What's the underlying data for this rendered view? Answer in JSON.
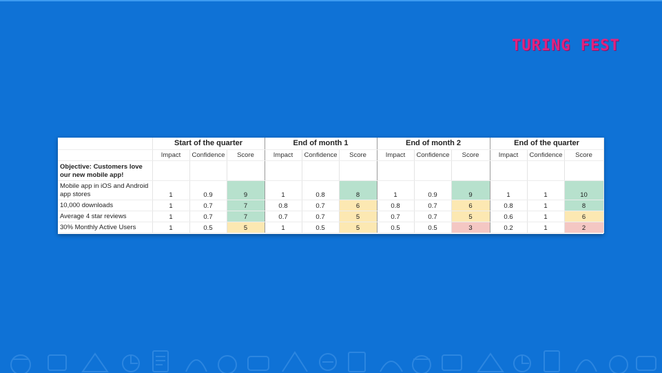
{
  "logo": "TURING FEST",
  "sheet": {
    "groups": [
      "Start of the quarter",
      "End of month 1",
      "End of month 2",
      "End of the quarter"
    ],
    "subheaders": [
      "Impact",
      "Confidence",
      "Score"
    ],
    "objective": "Objective: Customers love our new mobile app!",
    "rows": [
      {
        "label": "Mobile app in iOS and Android app stores",
        "cells": [
          {
            "impact": "1",
            "confidence": "0.9",
            "score": "9",
            "color": "green"
          },
          {
            "impact": "1",
            "confidence": "0.8",
            "score": "8",
            "color": "green"
          },
          {
            "impact": "1",
            "confidence": "0.9",
            "score": "9",
            "color": "green"
          },
          {
            "impact": "1",
            "confidence": "1",
            "score": "10",
            "color": "green"
          }
        ]
      },
      {
        "label": "10,000 downloads",
        "cells": [
          {
            "impact": "1",
            "confidence": "0.7",
            "score": "7",
            "color": "green"
          },
          {
            "impact": "0.8",
            "confidence": "0.7",
            "score": "6",
            "color": "yellow"
          },
          {
            "impact": "0.8",
            "confidence": "0.7",
            "score": "6",
            "color": "yellow"
          },
          {
            "impact": "0.8",
            "confidence": "1",
            "score": "8",
            "color": "green"
          }
        ]
      },
      {
        "label": "Average 4 star reviews",
        "cells": [
          {
            "impact": "1",
            "confidence": "0.7",
            "score": "7",
            "color": "green"
          },
          {
            "impact": "0.7",
            "confidence": "0.7",
            "score": "5",
            "color": "yellow"
          },
          {
            "impact": "0.7",
            "confidence": "0.7",
            "score": "5",
            "color": "yellow"
          },
          {
            "impact": "0.6",
            "confidence": "1",
            "score": "6",
            "color": "yellow"
          }
        ]
      },
      {
        "label": "30% Monthly Active Users",
        "cells": [
          {
            "impact": "1",
            "confidence": "0.5",
            "score": "5",
            "color": "yellow"
          },
          {
            "impact": "1",
            "confidence": "0.5",
            "score": "5",
            "color": "yellow"
          },
          {
            "impact": "0.5",
            "confidence": "0.5",
            "score": "3",
            "color": "red"
          },
          {
            "impact": "0.2",
            "confidence": "1",
            "score": "2",
            "color": "red"
          }
        ]
      }
    ]
  },
  "colors": {
    "background": "#0f72d6",
    "logo": "#e0237f",
    "score_green": "#b7e1cd",
    "score_yellow": "#fce8b2",
    "score_red": "#f4c7c3"
  }
}
